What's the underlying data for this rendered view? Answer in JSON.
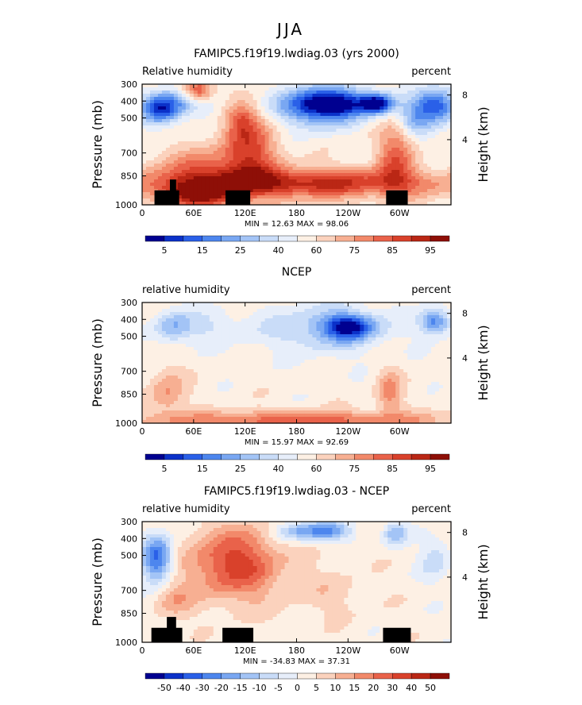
{
  "figure": {
    "title": "JJA"
  },
  "axes": {
    "x_ticks": [
      "0",
      "60E",
      "120E",
      "180",
      "120W",
      "60W"
    ],
    "y_ticks": [
      "300",
      "400",
      "500",
      "700",
      "850",
      "1000"
    ],
    "y_label": "Pressure (mb)",
    "right_ticks": [
      "8",
      "4"
    ],
    "right_label": "Height (km)"
  },
  "chart_data": [
    {
      "type": "heatmap",
      "title": "FAMIPC5.f19f19.lwdiag.03 (yrs 2000)",
      "left_label": "Relative humidity",
      "right_label": "percent",
      "stats": "MIN =   12.63   MAX =   98.06",
      "colorbar_labels": [
        "5",
        "15",
        "25",
        "40",
        "60",
        "75",
        "85",
        "95"
      ],
      "palette": [
        "#000090",
        "#0b31c9",
        "#2a60e8",
        "#4d86ee",
        "#79a7f2",
        "#a3c4f6",
        "#c9dcf8",
        "#e7eefa",
        "#fdf0e4",
        "#fbd2bd",
        "#f7af92",
        "#f2896a",
        "#e9624a",
        "#d9412b",
        "#ba2715",
        "#8e0f07"
      ],
      "features": {
        "base": 8,
        "blobs": [
          {
            "x": 0.06,
            "y": 0.22,
            "rx": 0.06,
            "ry": 0.12,
            "v": 2.5
          },
          {
            "x": 0.12,
            "y": 0.14,
            "rx": 0.12,
            "ry": 0.12,
            "v": 4.5
          },
          {
            "x": 0.2,
            "y": 0.7,
            "rx": 0.16,
            "ry": 0.18,
            "v": 11
          },
          {
            "x": 0.18,
            "y": 0.92,
            "rx": 0.12,
            "ry": 0.1,
            "v": 14
          },
          {
            "x": 0.18,
            "y": 0.06,
            "rx": 0.05,
            "ry": 0.1,
            "v": 14
          },
          {
            "x": 0.35,
            "y": 0.55,
            "rx": 0.09,
            "ry": 0.3,
            "v": 12.5
          },
          {
            "x": 0.32,
            "y": 0.3,
            "rx": 0.05,
            "ry": 0.14,
            "v": 11
          },
          {
            "x": 0.55,
            "y": 0.2,
            "rx": 0.12,
            "ry": 0.18,
            "v": 4
          },
          {
            "x": 0.63,
            "y": 0.16,
            "rx": 0.14,
            "ry": 0.12,
            "v": 1
          },
          {
            "x": 0.76,
            "y": 0.16,
            "rx": 0.05,
            "ry": 0.08,
            "v": 1.5
          },
          {
            "x": 0.95,
            "y": 0.18,
            "rx": 0.07,
            "ry": 0.14,
            "v": 1.5
          },
          {
            "x": 0.5,
            "y": 0.82,
            "rx": 0.5,
            "ry": 0.12,
            "v": 14
          },
          {
            "x": 0.82,
            "y": 0.6,
            "rx": 0.06,
            "ry": 0.25,
            "v": 12
          },
          {
            "x": 0.88,
            "y": 0.3,
            "rx": 0.05,
            "ry": 0.12,
            "v": 5
          }
        ],
        "topo": [
          {
            "x0": 0.04,
            "x1": 0.12,
            "top": 0.88
          },
          {
            "x0": 0.09,
            "x1": 0.11,
            "top": 0.79
          },
          {
            "x0": 0.27,
            "x1": 0.35,
            "top": 0.88
          },
          {
            "x0": 0.79,
            "x1": 0.86,
            "top": 0.88
          }
        ]
      }
    },
    {
      "type": "heatmap",
      "title": "NCEP",
      "left_label": "relative humidity",
      "right_label": "percent",
      "stats": "MIN =   15.97   MAX =   92.69",
      "colorbar_labels": [
        "5",
        "15",
        "25",
        "40",
        "60",
        "75",
        "85",
        "95"
      ],
      "palette": [
        "#000090",
        "#0b31c9",
        "#2a60e8",
        "#4d86ee",
        "#79a7f2",
        "#a3c4f6",
        "#c9dcf8",
        "#e7eefa",
        "#fdf0e4",
        "#fbd2bd",
        "#f7af92",
        "#f2896a",
        "#e9624a",
        "#d9412b",
        "#ba2715",
        "#8e0f07"
      ],
      "features": {
        "base": 8,
        "blobs": [
          {
            "x": 0.1,
            "y": 0.2,
            "rx": 0.06,
            "ry": 0.14,
            "v": 5
          },
          {
            "x": 0.22,
            "y": 0.2,
            "rx": 0.12,
            "ry": 0.14,
            "v": 6.5
          },
          {
            "x": 0.6,
            "y": 0.22,
            "rx": 0.2,
            "ry": 0.2,
            "v": 5
          },
          {
            "x": 0.67,
            "y": 0.2,
            "rx": 0.08,
            "ry": 0.1,
            "v": 2
          },
          {
            "x": 0.95,
            "y": 0.16,
            "rx": 0.05,
            "ry": 0.1,
            "v": 3
          },
          {
            "x": 0.5,
            "y": 0.98,
            "rx": 0.5,
            "ry": 0.08,
            "v": 12
          },
          {
            "x": 0.08,
            "y": 0.75,
            "rx": 0.06,
            "ry": 0.2,
            "v": 10.5
          },
          {
            "x": 0.8,
            "y": 0.75,
            "rx": 0.04,
            "ry": 0.18,
            "v": 11
          }
        ],
        "topo": []
      }
    },
    {
      "type": "heatmap",
      "title": "FAMIPC5.f19f19.lwdiag.03 - NCEP",
      "left_label": "relative humidity",
      "right_label": "percent",
      "stats": "MIN = -34.83   MAX =   37.31",
      "colorbar_labels": [
        "-50",
        "-40",
        "-30",
        "-20",
        "-15",
        "-10",
        "-5",
        "0",
        "5",
        "10",
        "15",
        "20",
        "30",
        "40",
        "50"
      ],
      "palette": [
        "#000090",
        "#0b31c9",
        "#2a60e8",
        "#4d86ee",
        "#79a7f2",
        "#a3c4f6",
        "#c9dcf8",
        "#e7eefa",
        "#fdf0e4",
        "#fbd2bd",
        "#f7af92",
        "#f2896a",
        "#e9624a",
        "#d9412b",
        "#ba2715",
        "#8e0f07"
      ],
      "features": {
        "base": 8,
        "blobs": [
          {
            "x": 0.05,
            "y": 0.3,
            "rx": 0.05,
            "ry": 0.2,
            "v": 2
          },
          {
            "x": 0.3,
            "y": 0.35,
            "rx": 0.15,
            "ry": 0.3,
            "v": 13
          },
          {
            "x": 0.5,
            "y": 0.08,
            "rx": 0.08,
            "ry": 0.08,
            "v": 5
          },
          {
            "x": 0.6,
            "y": 0.08,
            "rx": 0.08,
            "ry": 0.08,
            "v": 4
          },
          {
            "x": 0.62,
            "y": 0.6,
            "rx": 0.12,
            "ry": 0.2,
            "v": 9
          },
          {
            "x": 0.82,
            "y": 0.1,
            "rx": 0.04,
            "ry": 0.1,
            "v": 5
          },
          {
            "x": 0.95,
            "y": 0.3,
            "rx": 0.05,
            "ry": 0.2,
            "v": 6
          },
          {
            "x": 0.1,
            "y": 0.65,
            "rx": 0.06,
            "ry": 0.15,
            "v": 10
          }
        ],
        "topo": [
          {
            "x0": 0.03,
            "x1": 0.13,
            "top": 0.88
          },
          {
            "x0": 0.08,
            "x1": 0.11,
            "top": 0.79
          },
          {
            "x0": 0.26,
            "x1": 0.36,
            "top": 0.88
          },
          {
            "x0": 0.78,
            "x1": 0.87,
            "top": 0.88
          }
        ]
      }
    }
  ]
}
